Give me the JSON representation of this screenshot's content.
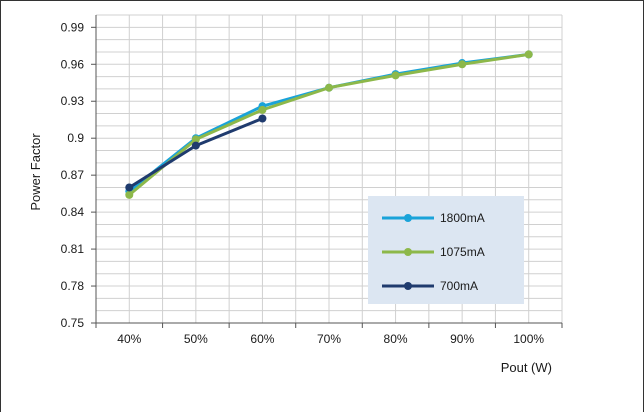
{
  "chart_data": {
    "type": "line",
    "xlabel": "Pout (W)",
    "ylabel": "Power Factor",
    "categories": [
      "40%",
      "50%",
      "60%",
      "70%",
      "80%",
      "90%",
      "100%"
    ],
    "y_ticks": [
      "0.75",
      "0.78",
      "0.81",
      "0.84",
      "0.87",
      "0.9",
      "0.93",
      "0.96",
      "0.99"
    ],
    "ylim": [
      0.75,
      1.0
    ],
    "grid": true,
    "legend_position": "lower-right",
    "series": [
      {
        "name": "1800mA",
        "color": "#1aa3d9",
        "values": [
          0.857,
          0.9,
          0.926,
          0.941,
          0.952,
          0.961,
          0.968
        ]
      },
      {
        "name": "1075mA",
        "color": "#8db84a",
        "values": [
          0.854,
          0.899,
          0.923,
          0.941,
          0.951,
          0.96,
          0.968
        ]
      },
      {
        "name": "700mA",
        "color": "#1f3b6e",
        "values": [
          0.86,
          0.894,
          0.916,
          null,
          null,
          null,
          null
        ]
      }
    ]
  }
}
